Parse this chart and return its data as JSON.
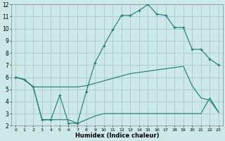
{
  "xlabel": "Humidex (Indice chaleur)",
  "background_color": "#cce8e8",
  "grid_color": "#aacfcf",
  "line_color": "#1a7a6e",
  "xlim": [
    -0.5,
    23.5
  ],
  "ylim": [
    2,
    12
  ],
  "yticks": [
    2,
    3,
    4,
    5,
    6,
    7,
    8,
    9,
    10,
    11,
    12
  ],
  "xticks": [
    0,
    1,
    2,
    3,
    4,
    5,
    6,
    7,
    8,
    9,
    10,
    11,
    12,
    13,
    14,
    15,
    16,
    17,
    18,
    19,
    20,
    21,
    22,
    23
  ],
  "line1_x": [
    0,
    1,
    2,
    3,
    4,
    5,
    6,
    7,
    8,
    9,
    10,
    11,
    12,
    13,
    14,
    15,
    16,
    17,
    18,
    19,
    20,
    21,
    22,
    23
  ],
  "line1_y": [
    6.0,
    5.8,
    5.2,
    5.2,
    5.2,
    5.2,
    5.2,
    5.2,
    5.3,
    5.5,
    5.7,
    5.9,
    6.1,
    6.3,
    6.4,
    6.5,
    6.6,
    6.7,
    6.8,
    6.9,
    5.3,
    4.3,
    4.1,
    3.1
  ],
  "line2_x": [
    0,
    1,
    2,
    3,
    4,
    5,
    6,
    7,
    8,
    9,
    10,
    11,
    12,
    13,
    14,
    15,
    16,
    17,
    18,
    19,
    20,
    21,
    22,
    23
  ],
  "line2_y": [
    6.0,
    5.8,
    5.2,
    2.5,
    2.5,
    4.5,
    2.2,
    2.2,
    4.8,
    7.2,
    8.6,
    9.9,
    11.1,
    11.1,
    11.5,
    12.0,
    11.2,
    11.1,
    10.1,
    10.1,
    8.3,
    8.3,
    7.5,
    7.0
  ],
  "line3_x": [
    0,
    1,
    2,
    3,
    4,
    5,
    6,
    7,
    8,
    9,
    10,
    11,
    12,
    13,
    14,
    15,
    16,
    17,
    18,
    19,
    20,
    21,
    22,
    23
  ],
  "line3_y": [
    6.0,
    5.8,
    5.2,
    2.5,
    2.5,
    2.5,
    2.5,
    2.2,
    2.5,
    2.8,
    3.0,
    3.0,
    3.0,
    3.0,
    3.0,
    3.0,
    3.0,
    3.0,
    3.0,
    3.0,
    3.0,
    3.0,
    4.3,
    3.1
  ]
}
